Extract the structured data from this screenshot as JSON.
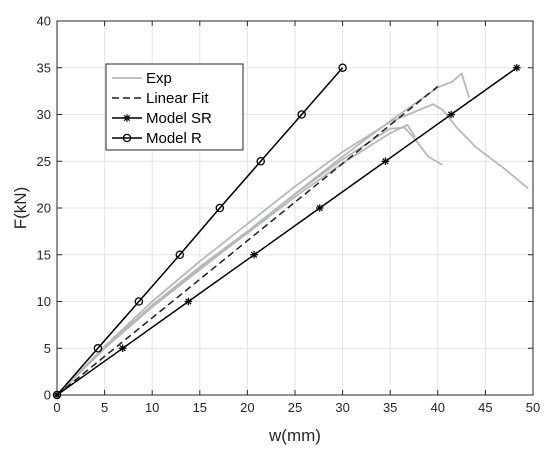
{
  "chart_data": {
    "type": "line",
    "title": "",
    "xlabel": "w(mm)",
    "ylabel": "F(kN)",
    "xlim": [
      0,
      50
    ],
    "ylim": [
      0,
      40
    ],
    "xticks": [
      0,
      5,
      10,
      15,
      20,
      25,
      30,
      35,
      40,
      45,
      50
    ],
    "yticks": [
      0,
      5,
      10,
      15,
      20,
      25,
      30,
      35,
      40
    ],
    "grid": true,
    "legend_position": "top-left",
    "series": [
      {
        "name": "Exp",
        "color": "#b4b9bc",
        "style": "solid",
        "marker": "none",
        "curves": [
          [
            [
              0,
              0
            ],
            [
              5,
              5
            ],
            [
              10,
              9.6
            ],
            [
              15,
              13.7
            ],
            [
              20,
              17.5
            ],
            [
              25,
              21.5
            ],
            [
              30,
              25.2
            ],
            [
              35,
              28.5
            ],
            [
              36.5,
              28.6
            ],
            [
              37.5,
              27.5
            ],
            [
              39,
              25.5
            ],
            [
              40.5,
              24.6
            ]
          ],
          [
            [
              0,
              0
            ],
            [
              5,
              5.1
            ],
            [
              10,
              9.6
            ],
            [
              15,
              13.5
            ],
            [
              20,
              17.3
            ],
            [
              25,
              21.2
            ],
            [
              30,
              24.8
            ],
            [
              35,
              28.0
            ],
            [
              36.8,
              28.9
            ],
            [
              37.6,
              27.6
            ]
          ],
          [
            [
              0,
              0
            ],
            [
              5,
              5.2
            ],
            [
              10,
              10.0
            ],
            [
              15,
              14.3
            ],
            [
              20,
              18.3
            ],
            [
              25,
              22.3
            ],
            [
              30,
              26.0
            ],
            [
              35,
              29.2
            ],
            [
              39.5,
              31.1
            ],
            [
              40.5,
              30.5
            ],
            [
              42,
              28.6
            ],
            [
              44,
              26.5
            ],
            [
              47,
              24.2
            ],
            [
              49.5,
              22.1
            ]
          ],
          [
            [
              0,
              0
            ],
            [
              5,
              5.0
            ],
            [
              10,
              9.4
            ],
            [
              15,
              13.4
            ],
            [
              20,
              17.4
            ],
            [
              25,
              21.5
            ],
            [
              30,
              25.5
            ],
            [
              35,
              29.3
            ],
            [
              40,
              32.9
            ],
            [
              41.5,
              33.5
            ],
            [
              42.5,
              34.4
            ],
            [
              43.3,
              31.8
            ]
          ]
        ]
      },
      {
        "name": "Linear Fit",
        "color": "#202020",
        "style": "dashed",
        "marker": "none",
        "points": [
          [
            0,
            0
          ],
          [
            40,
            33
          ]
        ]
      },
      {
        "name": "Model SR",
        "color": "#000000",
        "style": "solid",
        "marker": "asterisk",
        "points": [
          [
            0,
            0
          ],
          [
            6.9,
            5
          ],
          [
            13.8,
            10
          ],
          [
            20.7,
            15
          ],
          [
            27.6,
            20
          ],
          [
            34.5,
            25
          ],
          [
            41.4,
            30
          ],
          [
            48.3,
            35
          ]
        ]
      },
      {
        "name": "Model R",
        "color": "#000000",
        "style": "solid",
        "marker": "circle",
        "points": [
          [
            0,
            0
          ],
          [
            4.3,
            5
          ],
          [
            8.6,
            10
          ],
          [
            12.9,
            15
          ],
          [
            17.1,
            20
          ],
          [
            21.4,
            25
          ],
          [
            25.7,
            30
          ],
          [
            30,
            35
          ]
        ]
      }
    ]
  }
}
